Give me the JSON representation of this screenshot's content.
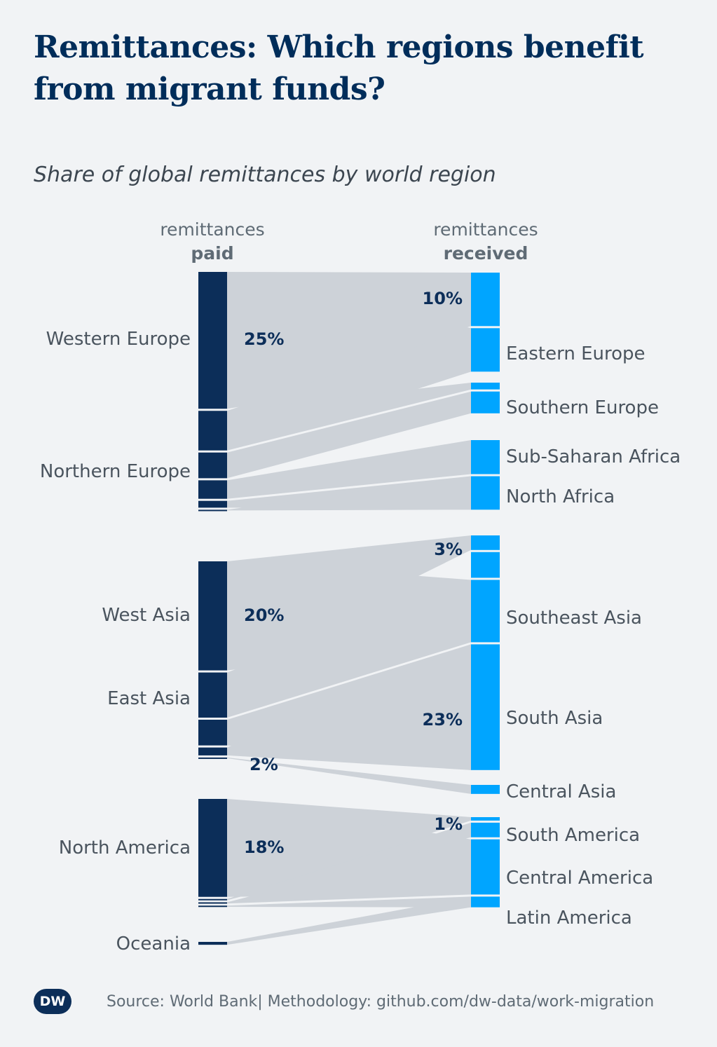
{
  "title": "Remittances: Which regions benefit from migrant funds?",
  "subtitle": "Share of global remittances by world region",
  "footer": {
    "logo": "DW",
    "source": "Source: World Bank| Methodology: github.com/dw-data/work-migration"
  },
  "colors": {
    "paid": "#0c2e59",
    "received": "#00a5ff",
    "flow": "#cdd2d8",
    "background": "#f1f3f5"
  },
  "chart_data": {
    "type": "sankey",
    "title": "Share of global remittances by world region",
    "left_header": {
      "line1": "remittances",
      "line2": "paid"
    },
    "right_header": {
      "line1": "remittances",
      "line2": "received"
    },
    "left_labels": [
      "Western Europe",
      "Northern Europe",
      "West Asia",
      "East Asia",
      "North America",
      "Oceania"
    ],
    "right_labels": [
      "Eastern Europe",
      "Southern Europe",
      "Sub-Saharan Africa",
      "North Africa",
      "Southeast Asia",
      "South Asia",
      "Central Asia",
      "South America",
      "Central America",
      "Latin America"
    ],
    "annotations": [
      {
        "text": "25%",
        "side": "left",
        "region": "Western Europe",
        "value": 25
      },
      {
        "text": "10%",
        "side": "right",
        "region": "Western Europe",
        "value": 10
      },
      {
        "text": "20%",
        "side": "left",
        "region": "West Asia",
        "value": 20
      },
      {
        "text": "3%",
        "side": "right",
        "region": "West Asia",
        "value": 3
      },
      {
        "text": "2%",
        "side": "left",
        "region": "East Asia",
        "value": 2
      },
      {
        "text": "23%",
        "side": "right",
        "region": "South Asia",
        "value": 23
      },
      {
        "text": "18%",
        "side": "left",
        "region": "North America",
        "value": 18
      },
      {
        "text": "1%",
        "side": "right",
        "region": "North America",
        "value": 1
      }
    ],
    "flows": [
      {
        "from": "Western Europe",
        "to": "Western Europe",
        "value": 10
      },
      {
        "from": "Western Europe",
        "to": "Eastern Europe",
        "value": 15
      },
      {
        "from": "Northern Europe",
        "to": "Eastern Europe",
        "value": 4.5
      },
      {
        "from": "Northern Europe",
        "to": "Southern Europe",
        "value": 3
      },
      {
        "from": "Northern Europe",
        "to": "Sub-Saharan Africa",
        "value": 2.5
      },
      {
        "from": "Northern Europe",
        "to": "Sub-Saharan Africa",
        "value": 0.9
      },
      {
        "from": "Northern Europe",
        "to": "North Africa",
        "value": 0.2
      },
      {
        "from": "West Asia",
        "to": "West Asia",
        "value": 3
      },
      {
        "from": "West Asia",
        "to": "Southeast Asia",
        "value": 17
      },
      {
        "from": "East Asia",
        "to": "Southeast Asia",
        "value": 8
      },
      {
        "from": "East Asia",
        "to": "South Asia",
        "value": 5
      },
      {
        "from": "East Asia",
        "to": "South Asia",
        "value": 2
      },
      {
        "from": "East Asia",
        "to": "Central Asia",
        "value": 0.5
      },
      {
        "from": "North America",
        "to": "North America",
        "value": 1
      },
      {
        "from": "North America",
        "to": "South America",
        "value": 17
      },
      {
        "from": "North America",
        "to": "South America",
        "value": 0.6
      },
      {
        "from": "North America",
        "to": "Central America",
        "value": 0.6
      },
      {
        "from": "North America",
        "to": "Latin America",
        "value": 0.6
      },
      {
        "from": "Oceania",
        "to": "Latin America",
        "value": 0.9
      }
    ],
    "paid_segments": [
      25,
      7.5,
      5,
      3.7,
      1.6,
      0.2,
      20,
      8.5,
      5,
      1.8,
      0.5,
      18,
      0.6,
      0.6,
      0.6,
      0.9
    ],
    "received_segments": [
      10,
      8.2,
      1.6,
      4.3,
      6.5,
      6.4,
      3,
      5,
      11.6,
      23,
      2,
      1,
      3,
      10.3,
      2.3
    ]
  }
}
